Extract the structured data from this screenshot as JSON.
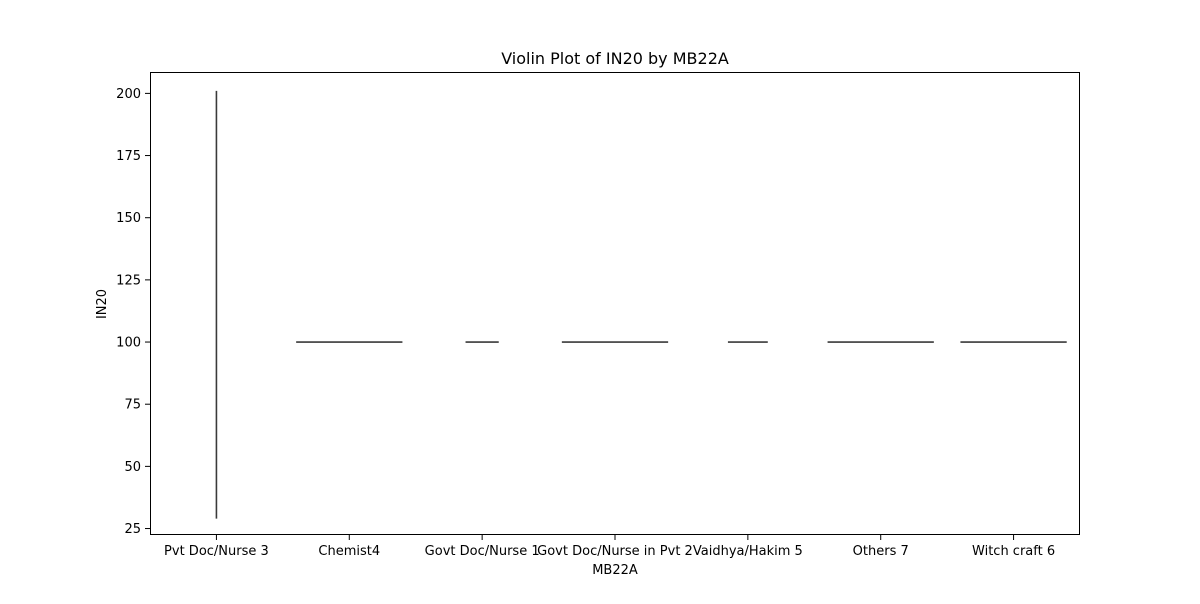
{
  "chart_data": {
    "type": "violin",
    "title": "Violin Plot of IN20 by MB22A",
    "xlabel": "MB22A",
    "ylabel": "IN20",
    "categories": [
      "Pvt Doc/Nurse 3",
      "Chemist4",
      "Govt Doc/Nurse 1",
      "Govt Doc/Nurse in Pvt 2",
      "Vaidhya/Hakim 5",
      "Others 7",
      "Witch craft 6"
    ],
    "violins": [
      {
        "category": "Pvt Doc/Nurse 3",
        "min": 29,
        "max": 201,
        "center": 100,
        "relative_width": 0.02
      },
      {
        "category": "Chemist4",
        "min": 100,
        "max": 100,
        "center": 100,
        "relative_width": 0.8
      },
      {
        "category": "Govt Doc/Nurse 1",
        "min": 100,
        "max": 100,
        "center": 100,
        "relative_width": 0.25
      },
      {
        "category": "Govt Doc/Nurse in Pvt 2",
        "min": 100,
        "max": 100,
        "center": 100,
        "relative_width": 0.8
      },
      {
        "category": "Vaidhya/Hakim 5",
        "min": 100,
        "max": 100,
        "center": 100,
        "relative_width": 0.3
      },
      {
        "category": "Others 7",
        "min": 100,
        "max": 100,
        "center": 100,
        "relative_width": 0.8
      },
      {
        "category": "Witch craft 6",
        "min": 100,
        "max": 100,
        "center": 100,
        "relative_width": 0.8
      }
    ],
    "yticks": [
      25,
      50,
      75,
      100,
      125,
      150,
      175,
      200
    ],
    "ylim": [
      22.4,
      208.6
    ],
    "grid": false,
    "colors": {
      "mark": "#3a3a3a",
      "axis": "#000000",
      "background": "#ffffff"
    }
  }
}
